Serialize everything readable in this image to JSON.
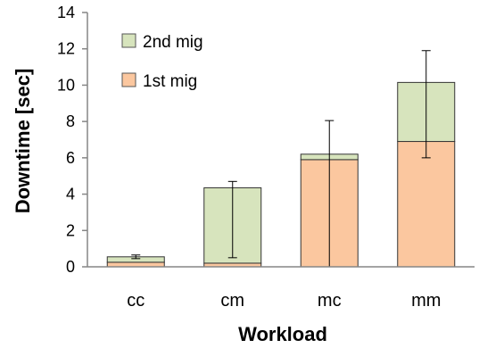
{
  "chart_data": {
    "type": "bar",
    "stacked": true,
    "xlabel": "Workload",
    "ylabel": "Downtime [sec]",
    "categories": [
      "cc",
      "cm",
      "mc",
      "mm"
    ],
    "ylim": [
      0,
      14
    ],
    "yticks": [
      0,
      2,
      4,
      6,
      8,
      10,
      12,
      14
    ],
    "grid": false,
    "legend_position": "top-left",
    "series": [
      {
        "name": "1st mig",
        "color": "#fbc79f",
        "values": [
          0.25,
          0.2,
          5.9,
          6.9
        ]
      },
      {
        "name": "2nd mig",
        "color": "#d7e4bd",
        "values": [
          0.3,
          4.15,
          0.3,
          3.25
        ]
      }
    ],
    "error_bars": [
      {
        "low": 0.45,
        "high": 0.65
      },
      {
        "low": 0.5,
        "high": 4.7
      },
      {
        "low": 0.0,
        "high": 8.05
      },
      {
        "low": 6.0,
        "high": 11.9
      }
    ],
    "legend": [
      "2nd mig",
      "1st mig"
    ]
  }
}
